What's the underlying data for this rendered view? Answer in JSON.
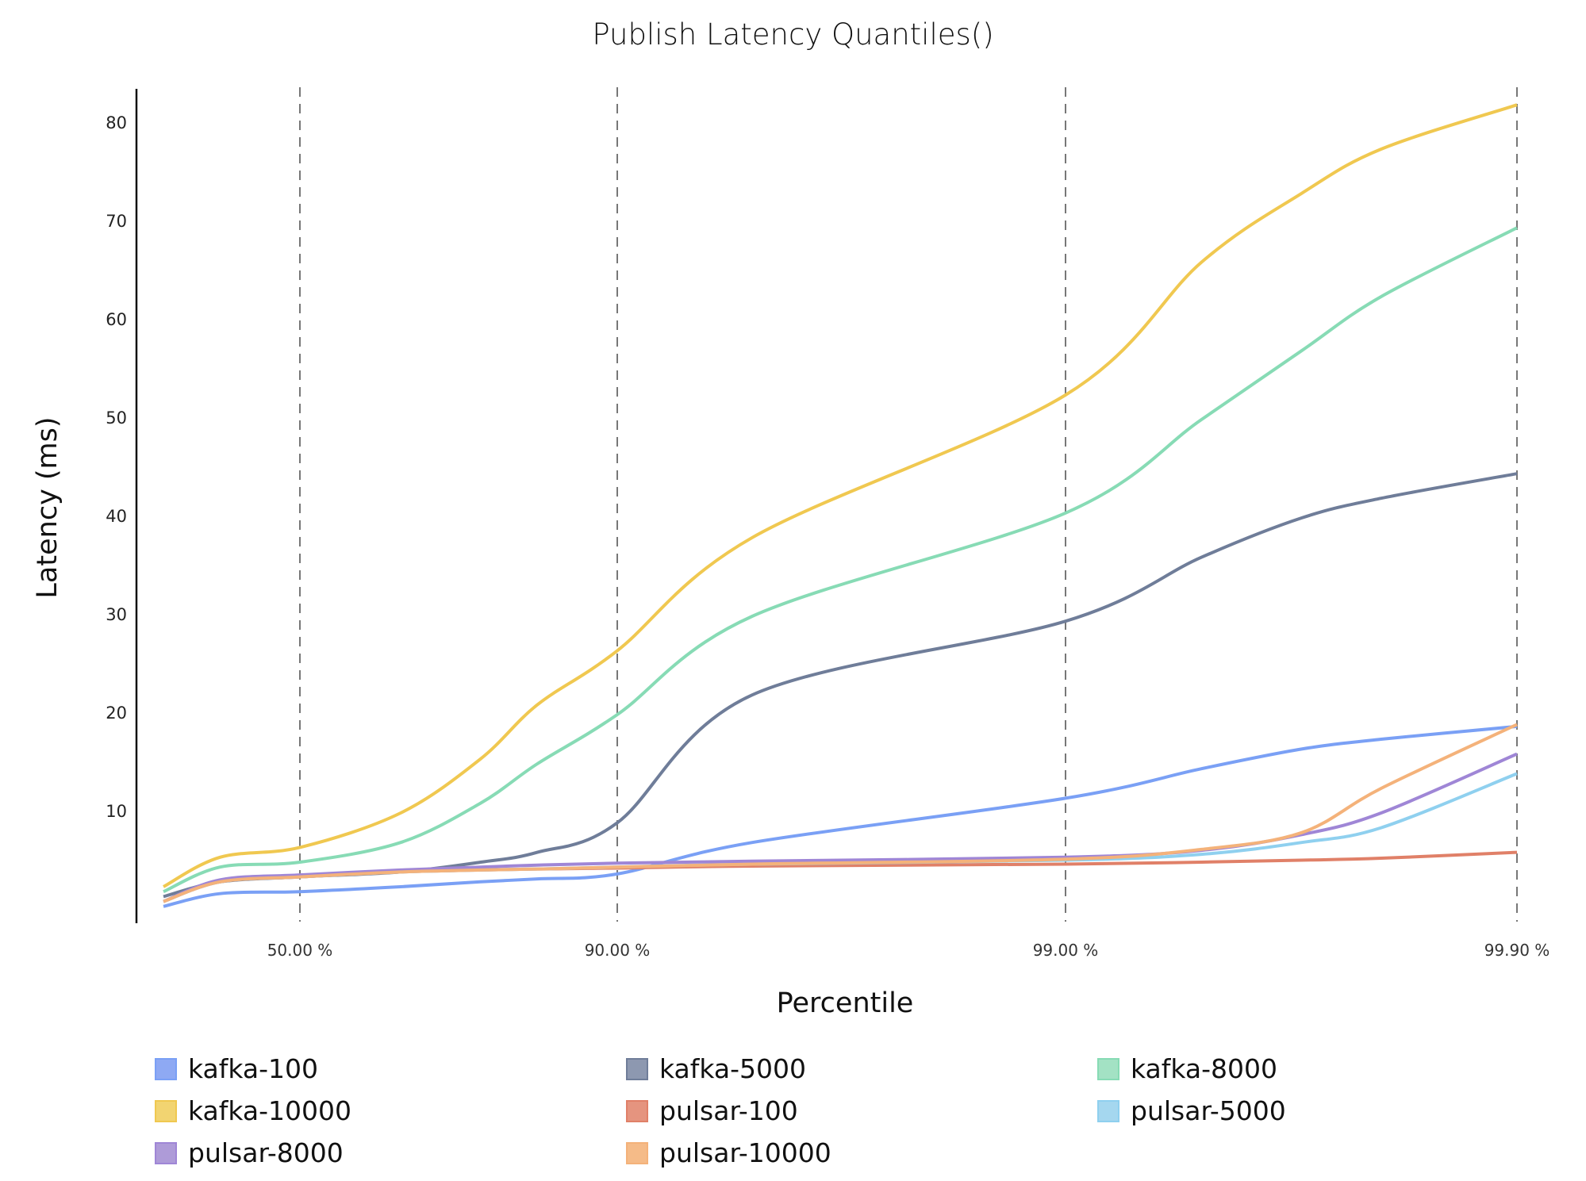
{
  "title": "Publish Latency Quantiles()",
  "chart_data": {
    "type": "line",
    "title": "Publish Latency Quantiles()",
    "xlabel": "Percentile",
    "ylabel": "Latency (ms)",
    "x_ticks": [
      "50.00 %",
      "90.00 %",
      "99.00 %",
      "99.90 %"
    ],
    "y_ticks": [
      10,
      20,
      30,
      40,
      50,
      60,
      70,
      80
    ],
    "ylim": [
      0,
      83
    ],
    "x": [
      0,
      25,
      50,
      70,
      80,
      85,
      90,
      95,
      99,
      99.5,
      99.7,
      99.8,
      99.9
    ],
    "grid": "vertical dashed lines at x tick positions",
    "legend_position": "bottom",
    "series": [
      {
        "name": "kafka-100",
        "color": "#7aa0f5",
        "values": [
          0.5,
          1.8,
          2.0,
          2.5,
          3.0,
          3.3,
          3.8,
          7.0,
          11.5,
          14.5,
          16.5,
          17.5,
          18.8
        ]
      },
      {
        "name": "kafka-5000",
        "color": "#6f7d99",
        "values": [
          1.5,
          3.0,
          3.5,
          4.0,
          5.0,
          6.0,
          9.0,
          22.0,
          29.5,
          36.0,
          40.0,
          42.0,
          44.5
        ]
      },
      {
        "name": "kafka-8000",
        "color": "#87dbb5",
        "values": [
          2.0,
          4.5,
          5.0,
          7.0,
          11.0,
          15.0,
          20.0,
          30.0,
          40.5,
          50.0,
          57.0,
          62.5,
          69.5
        ]
      },
      {
        "name": "kafka-10000",
        "color": "#f0c850",
        "values": [
          2.5,
          5.5,
          6.5,
          10.0,
          15.5,
          21.0,
          26.5,
          38.0,
          52.5,
          66.0,
          73.0,
          77.5,
          82.0
        ]
      },
      {
        "name": "pulsar-100",
        "color": "#e08068",
        "values": [
          1.0,
          3.0,
          3.5,
          4.0,
          4.2,
          4.3,
          4.4,
          4.6,
          4.8,
          5.0,
          5.2,
          5.4,
          6.0
        ]
      },
      {
        "name": "pulsar-5000",
        "color": "#8fd0ef",
        "values": [
          1.0,
          3.0,
          3.5,
          4.0,
          4.2,
          4.3,
          4.5,
          4.8,
          5.2,
          5.8,
          7.0,
          8.5,
          14.0
        ]
      },
      {
        "name": "pulsar-8000",
        "color": "#9f86d6",
        "values": [
          1.0,
          3.2,
          3.7,
          4.2,
          4.5,
          4.7,
          4.9,
          5.1,
          5.5,
          6.2,
          7.8,
          10.0,
          16.0
        ]
      },
      {
        "name": "pulsar-10000",
        "color": "#f4b27a",
        "values": [
          1.0,
          3.0,
          3.5,
          4.0,
          4.2,
          4.3,
          4.5,
          4.8,
          5.3,
          6.3,
          8.0,
          12.5,
          19.0
        ]
      }
    ]
  },
  "legend": [
    {
      "label": "kafka-100",
      "color": "#8ea9f3",
      "border": "#7aa0f5"
    },
    {
      "label": "kafka-5000",
      "color": "#8d98b0",
      "border": "#6f7d99"
    },
    {
      "label": "kafka-8000",
      "color": "#a3e2c4",
      "border": "#87dbb5"
    },
    {
      "label": "kafka-10000",
      "color": "#f2d471",
      "border": "#f0c850"
    },
    {
      "label": "pulsar-100",
      "color": "#e5947f",
      "border": "#e08068"
    },
    {
      "label": "pulsar-5000",
      "color": "#a5d7ef",
      "border": "#8fd0ef"
    },
    {
      "label": "pulsar-8000",
      "color": "#ae9bd8",
      "border": "#9f86d6"
    },
    {
      "label": "pulsar-10000",
      "color": "#f5bb88",
      "border": "#f4b27a"
    }
  ]
}
